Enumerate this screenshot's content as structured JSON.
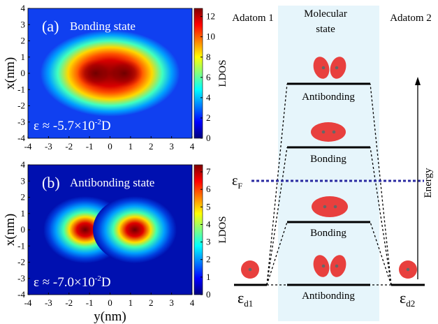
{
  "panels": [
    {
      "label": "(a)",
      "title": "Bonding state",
      "energy": [
        "ε ≈ -5.7×10",
        "-2",
        "D"
      ],
      "ylabel": "x(nm)",
      "colorbar_label": "LDOS",
      "xlim": [
        -4,
        4
      ],
      "ylim": [
        -4,
        4
      ],
      "xticks": [
        -4,
        -3,
        -2,
        -1,
        0,
        1,
        2,
        3,
        4
      ],
      "yticks": [
        -4,
        -3,
        -2,
        -1,
        0,
        1,
        2,
        3,
        4
      ],
      "clim": [
        0,
        12.8
      ],
      "cticks": [
        0,
        2,
        4,
        6,
        8,
        10,
        12
      ]
    },
    {
      "label": "(b)",
      "title": "Antibonding state",
      "energy": [
        "ε ≈ -7.0×10",
        "-2",
        "D"
      ],
      "ylabel": "x(nm)",
      "xlabel": "y(nm)",
      "colorbar_label": "LDOS",
      "xlim": [
        -4,
        4
      ],
      "ylim": [
        -4,
        4
      ],
      "xticks": [
        -4,
        -3,
        -2,
        -1,
        0,
        1,
        2,
        3,
        4
      ],
      "yticks": [
        -4,
        -3,
        -2,
        -1,
        0,
        1,
        2,
        3,
        4
      ],
      "clim": [
        0,
        7.4
      ],
      "cticks": [
        0,
        1,
        2,
        3,
        4,
        5,
        6,
        7
      ]
    }
  ],
  "diagram": {
    "adatom_1": "Adatom 1",
    "molecular_header": [
      "Molecular",
      "state"
    ],
    "adatom_2": "Adatom 2",
    "levels": [
      "Antibonding",
      "Bonding",
      "Bonding",
      "Antibonding"
    ],
    "fermi": [
      "ε",
      "F"
    ],
    "ed1": [
      "ε",
      "d1"
    ],
    "ed2": [
      "ε",
      "d2"
    ],
    "energy_axis": "Energy"
  }
}
